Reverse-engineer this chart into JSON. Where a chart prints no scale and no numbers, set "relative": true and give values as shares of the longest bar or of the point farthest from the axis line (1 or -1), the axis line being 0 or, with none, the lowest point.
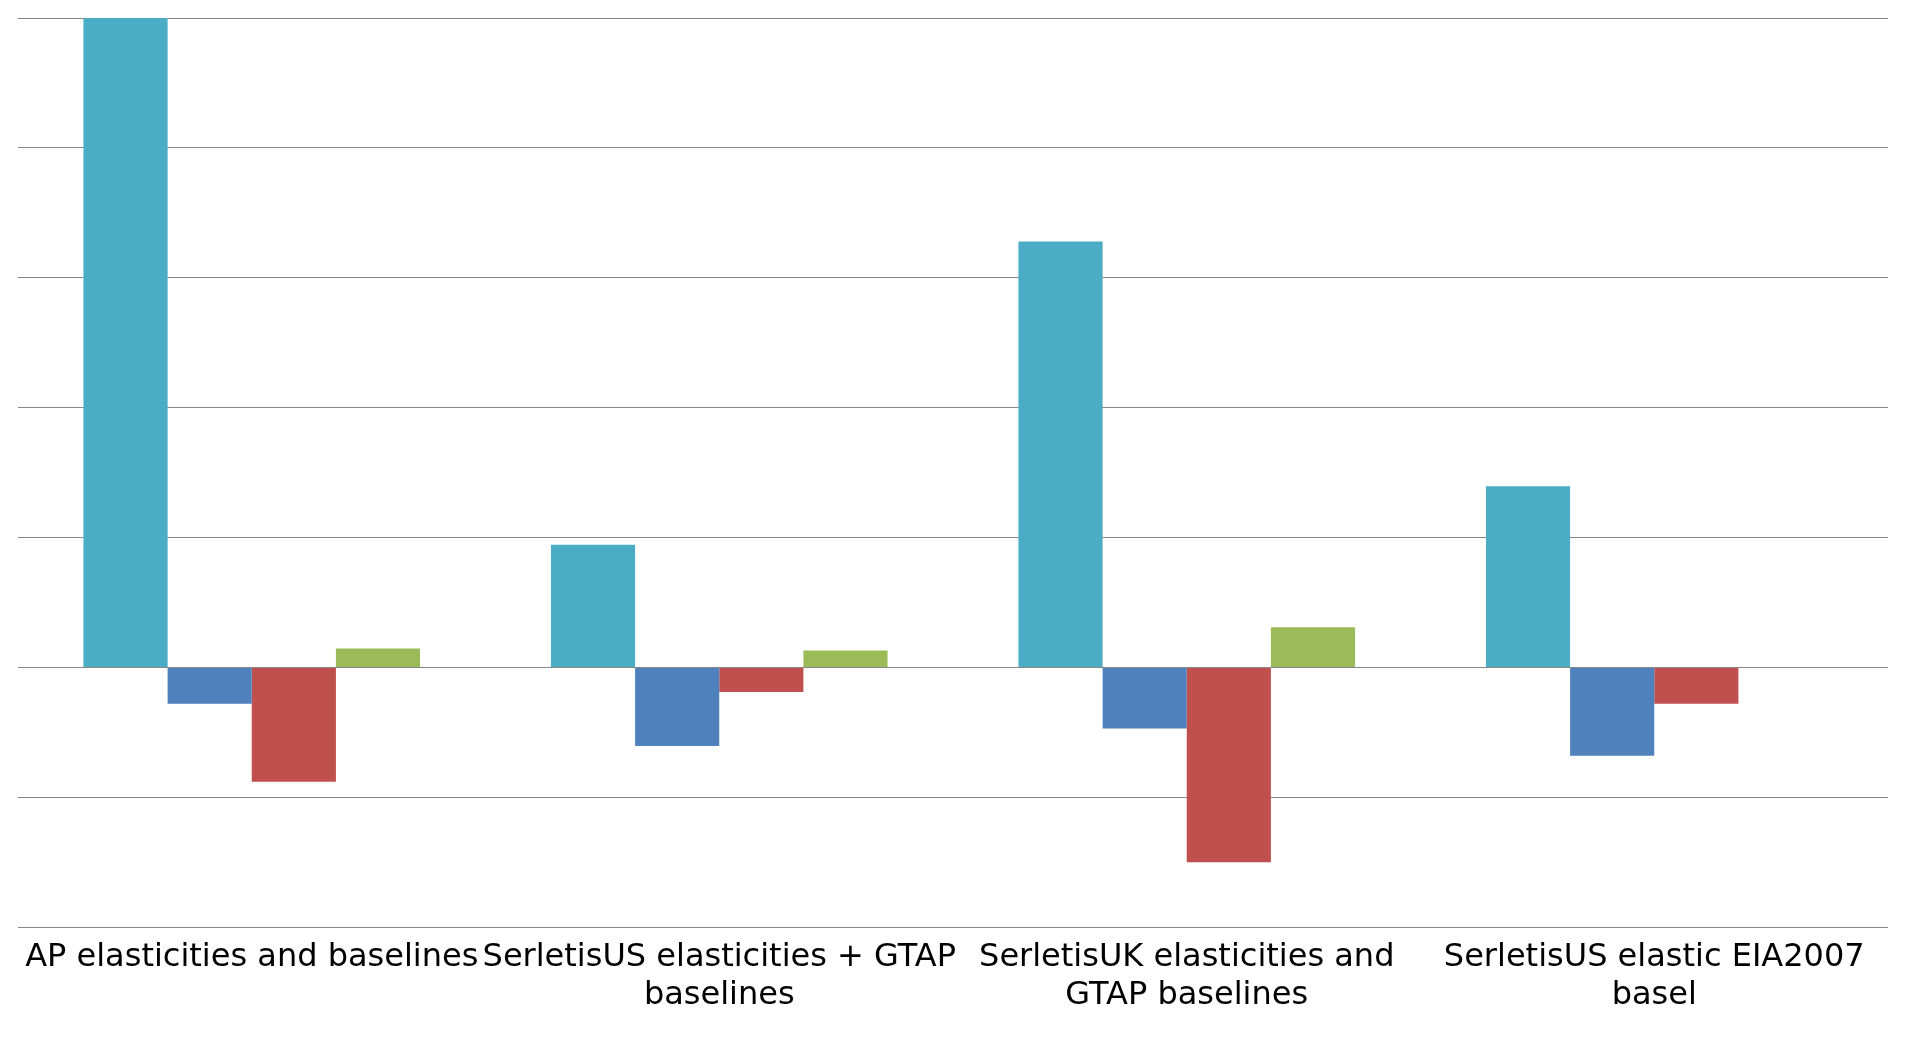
{
  "chart_data": {
    "type": "bar",
    "relative": true,
    "grid": "y",
    "categories": [
      "AP elasticities and baselines",
      "SerletisUS elasticities + GTAP baselines",
      "SerletisUK elasticities and GTAP baselines",
      "SerletisUS elastic EIA2007 basel"
    ],
    "series": [
      {
        "color": "#4bacc6",
        "values": [
          1,
          0.189,
          0.656,
          0.279
        ]
      },
      {
        "color": "#4f81bd",
        "values": [
          -0.056,
          -0.121,
          -0.094,
          -0.136
        ]
      },
      {
        "color": "#c0504d",
        "values": [
          -0.176,
          -0.038,
          -0.3,
          -0.056
        ]
      },
      {
        "color": "#9bbb59",
        "values": [
          0.029,
          0.026,
          0.062,
          null
        ]
      }
    ]
  }
}
